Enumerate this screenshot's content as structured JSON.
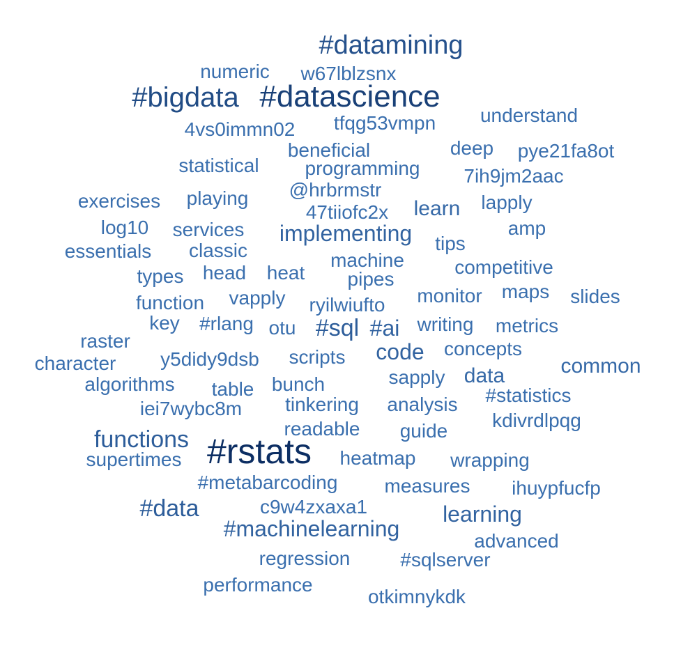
{
  "chart_data": {
    "type": "wordcloud",
    "title": "",
    "color_scale": [
      "#3a6fae",
      "#0c2e63"
    ],
    "words": [
      {
        "text": "#rstats",
        "weight": 50
      },
      {
        "text": "#datascience",
        "weight": 44
      },
      {
        "text": "#bigdata",
        "weight": 40
      },
      {
        "text": "#datamining",
        "weight": 38
      },
      {
        "text": "#sql",
        "weight": 34
      },
      {
        "text": "#data",
        "weight": 34
      },
      {
        "text": "functions",
        "weight": 34
      },
      {
        "text": "#machinelearning",
        "weight": 32
      },
      {
        "text": "implementing",
        "weight": 32
      },
      {
        "text": "learning",
        "weight": 32
      },
      {
        "text": "#ai",
        "weight": 32
      },
      {
        "text": "code",
        "weight": 32
      },
      {
        "text": "common",
        "weight": 30
      },
      {
        "text": "data",
        "weight": 30
      },
      {
        "text": "learn",
        "weight": 30
      },
      {
        "text": "#metabarcoding",
        "weight": 28
      },
      {
        "text": "supertimes",
        "weight": 28
      },
      {
        "text": "heatmap",
        "weight": 28
      },
      {
        "text": "wrapping",
        "weight": 28
      },
      {
        "text": "measures",
        "weight": 28
      },
      {
        "text": "ihuypfucfp",
        "weight": 28
      },
      {
        "text": "c9w4zxaxa1",
        "weight": 28
      },
      {
        "text": "advanced",
        "weight": 28
      },
      {
        "text": "regression",
        "weight": 28
      },
      {
        "text": "#sqlserver",
        "weight": 28
      },
      {
        "text": "performance",
        "weight": 28
      },
      {
        "text": "otkimnykdk",
        "weight": 28
      },
      {
        "text": "readable",
        "weight": 28
      },
      {
        "text": "guide",
        "weight": 28
      },
      {
        "text": "kdivrdlpqg",
        "weight": 28
      },
      {
        "text": "#statistics",
        "weight": 28
      },
      {
        "text": "analysis",
        "weight": 28
      },
      {
        "text": "tinkering",
        "weight": 28
      },
      {
        "text": "iei7wybc8m",
        "weight": 28
      },
      {
        "text": "algorithms",
        "weight": 28
      },
      {
        "text": "table",
        "weight": 28
      },
      {
        "text": "bunch",
        "weight": 28
      },
      {
        "text": "sapply",
        "weight": 28
      },
      {
        "text": "concepts",
        "weight": 28
      },
      {
        "text": "character",
        "weight": 28
      },
      {
        "text": "y5didy9dsb",
        "weight": 28
      },
      {
        "text": "scripts",
        "weight": 28
      },
      {
        "text": "raster",
        "weight": 28
      },
      {
        "text": "key",
        "weight": 28
      },
      {
        "text": "#rlang",
        "weight": 28
      },
      {
        "text": "otu",
        "weight": 28
      },
      {
        "text": "writing",
        "weight": 28
      },
      {
        "text": "metrics",
        "weight": 28
      },
      {
        "text": "function",
        "weight": 28
      },
      {
        "text": "vapply",
        "weight": 28
      },
      {
        "text": "ryilwiufto",
        "weight": 28
      },
      {
        "text": "monitor",
        "weight": 28
      },
      {
        "text": "maps",
        "weight": 28
      },
      {
        "text": "slides",
        "weight": 28
      },
      {
        "text": "types",
        "weight": 28
      },
      {
        "text": "head",
        "weight": 28
      },
      {
        "text": "heat",
        "weight": 28
      },
      {
        "text": "pipes",
        "weight": 28
      },
      {
        "text": "machine",
        "weight": 28
      },
      {
        "text": "competitive",
        "weight": 28
      },
      {
        "text": "essentials",
        "weight": 28
      },
      {
        "text": "classic",
        "weight": 28
      },
      {
        "text": "tips",
        "weight": 28
      },
      {
        "text": "log10",
        "weight": 28
      },
      {
        "text": "services",
        "weight": 28
      },
      {
        "text": "amp",
        "weight": 28
      },
      {
        "text": "exercises",
        "weight": 28
      },
      {
        "text": "playing",
        "weight": 28
      },
      {
        "text": "@hrbrmstr",
        "weight": 28
      },
      {
        "text": "47tiiofc2x",
        "weight": 28
      },
      {
        "text": "lapply",
        "weight": 28
      },
      {
        "text": "statistical",
        "weight": 28
      },
      {
        "text": "programming",
        "weight": 28
      },
      {
        "text": "7ih9jm2aac",
        "weight": 28
      },
      {
        "text": "beneficial",
        "weight": 28
      },
      {
        "text": "deep",
        "weight": 28
      },
      {
        "text": "pye21fa8ot",
        "weight": 28
      },
      {
        "text": "4vs0immn02",
        "weight": 28
      },
      {
        "text": "tfqg53vmpn",
        "weight": 28
      },
      {
        "text": "understand",
        "weight": 28
      },
      {
        "text": "numeric",
        "weight": 28
      },
      {
        "text": "w67lblzsnx",
        "weight": 28
      }
    ]
  }
}
